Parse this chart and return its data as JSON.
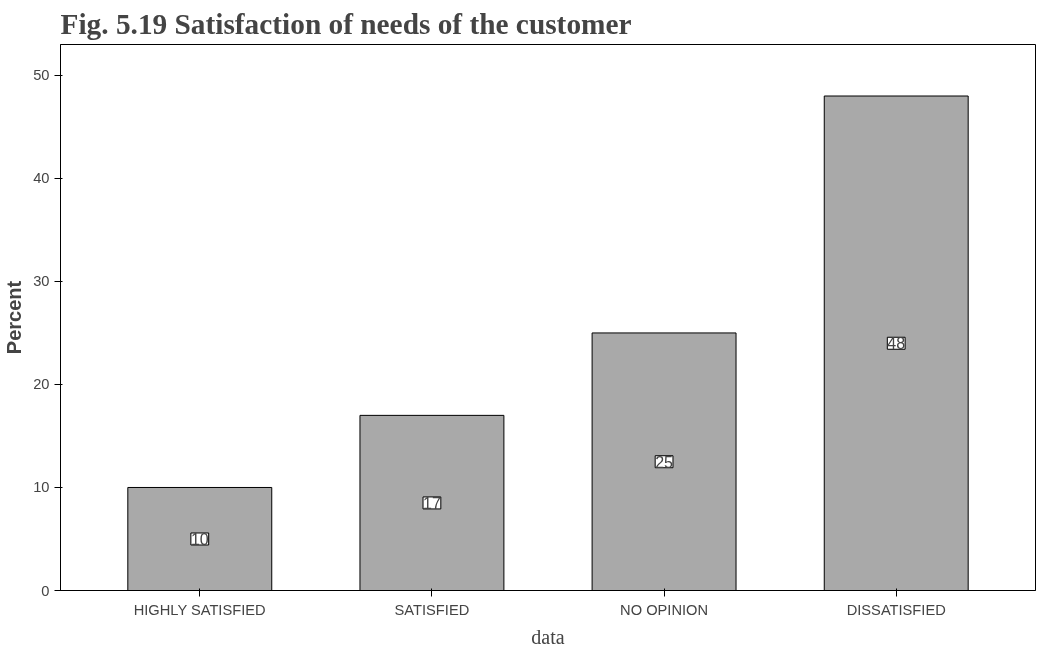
{
  "chart_data": {
    "type": "bar",
    "title": "Fig. 5.19 Satisfaction of needs of the customer",
    "xlabel": "data",
    "ylabel": "Percent",
    "categories": [
      "HIGHLY SATISFIED",
      "SATISFIED",
      "NO OPINION",
      "DISSATISFIED"
    ],
    "values": [
      10,
      17,
      25,
      48
    ],
    "color": "#a9a9a9",
    "data_labels": true,
    "ylim": [
      0,
      53
    ],
    "yticks": [
      0,
      10,
      20,
      30,
      40,
      50
    ],
    "grid": false
  }
}
